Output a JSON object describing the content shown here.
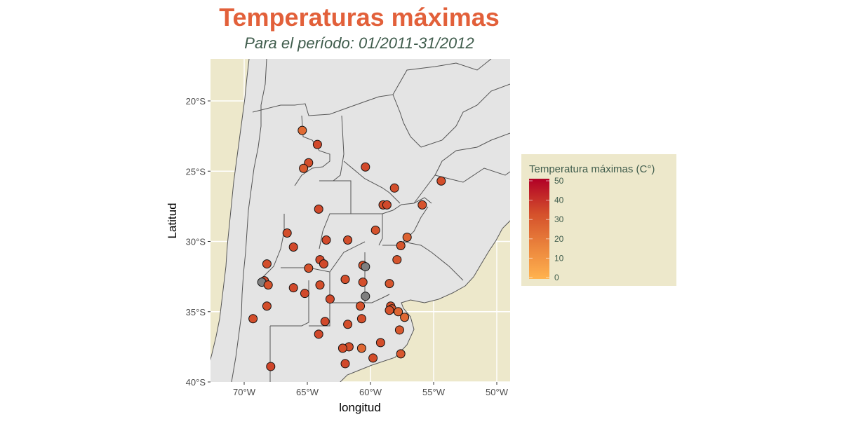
{
  "title": "Temperaturas máximas",
  "subtitle": "Para el período: 01/2011-31/2012",
  "colors": {
    "title": "#e2603a",
    "subtitle": "#3f5c4c",
    "ocean": "#ede8cb",
    "land": "#e4e4e4",
    "border": "#555555",
    "na": "#7f7f7f",
    "scale_low": "#ffb34f",
    "scale_mid": "#d4502b",
    "scale_high": "#b10026"
  },
  "chart_data": {
    "type": "scatter-map",
    "xlabel": "longitud",
    "ylabel": "Latitud",
    "xlim": [
      -72.7,
      -48.9
    ],
    "ylim": [
      -40,
      -17
    ],
    "x_ticks": [
      {
        "value": -70,
        "label": "70°W"
      },
      {
        "value": -65,
        "label": "65°W"
      },
      {
        "value": -60,
        "label": "60°W"
      },
      {
        "value": -55,
        "label": "55°W"
      },
      {
        "value": -50,
        "label": "50°W"
      }
    ],
    "y_ticks": [
      {
        "value": -20,
        "label": "20°S"
      },
      {
        "value": -25,
        "label": "25°S"
      },
      {
        "value": -30,
        "label": "30°S"
      },
      {
        "value": -35,
        "label": "35°S"
      },
      {
        "value": -40,
        "label": "40°S"
      }
    ],
    "grid": true,
    "legend": {
      "title": "Temperatura máximas (C°)",
      "placement": "right",
      "range": [
        0,
        50
      ],
      "ticks": [
        "0",
        "10",
        "20",
        "30",
        "40",
        "50"
      ]
    },
    "points": [
      {
        "lon": -65.4,
        "lat": -22.1,
        "tmax": 24
      },
      {
        "lon": -64.2,
        "lat": -23.1,
        "tmax": 34
      },
      {
        "lon": -64.9,
        "lat": -24.4,
        "tmax": 33
      },
      {
        "lon": -65.3,
        "lat": -24.8,
        "tmax": 29
      },
      {
        "lon": -60.4,
        "lat": -24.7,
        "tmax": 34
      },
      {
        "lon": -54.4,
        "lat": -25.7,
        "tmax": 33
      },
      {
        "lon": -58.1,
        "lat": -26.2,
        "tmax": 33
      },
      {
        "lon": -59.0,
        "lat": -27.4,
        "tmax": 33
      },
      {
        "lon": -58.7,
        "lat": -27.4,
        "tmax": 34
      },
      {
        "lon": -55.9,
        "lat": -27.4,
        "tmax": 32
      },
      {
        "lon": -64.1,
        "lat": -27.7,
        "tmax": 34
      },
      {
        "lon": -59.6,
        "lat": -29.2,
        "tmax": 32
      },
      {
        "lon": -57.1,
        "lat": -29.7,
        "tmax": 27
      },
      {
        "lon": -66.6,
        "lat": -29.4,
        "tmax": 33
      },
      {
        "lon": -66.1,
        "lat": -30.4,
        "tmax": 34
      },
      {
        "lon": -63.5,
        "lat": -29.9,
        "tmax": 34
      },
      {
        "lon": -61.8,
        "lat": -29.9,
        "tmax": 33
      },
      {
        "lon": -57.6,
        "lat": -30.3,
        "tmax": 31
      },
      {
        "lon": -68.2,
        "lat": -31.6,
        "tmax": 33
      },
      {
        "lon": -64.0,
        "lat": -31.3,
        "tmax": 34
      },
      {
        "lon": -63.7,
        "lat": -31.6,
        "tmax": 34
      },
      {
        "lon": -64.9,
        "lat": -31.9,
        "tmax": 32
      },
      {
        "lon": -60.6,
        "lat": -31.7,
        "tmax": 32
      },
      {
        "lon": -60.4,
        "lat": -31.8,
        "tmax": null
      },
      {
        "lon": -57.9,
        "lat": -31.3,
        "tmax": 31
      },
      {
        "lon": -68.4,
        "lat": -32.8,
        "tmax": 34
      },
      {
        "lon": -68.6,
        "lat": -32.9,
        "tmax": null
      },
      {
        "lon": -68.1,
        "lat": -33.1,
        "tmax": 32
      },
      {
        "lon": -66.1,
        "lat": -33.3,
        "tmax": 34
      },
      {
        "lon": -65.2,
        "lat": -33.7,
        "tmax": 34
      },
      {
        "lon": -64.0,
        "lat": -33.1,
        "tmax": 33
      },
      {
        "lon": -62.0,
        "lat": -32.7,
        "tmax": 33
      },
      {
        "lon": -60.6,
        "lat": -32.9,
        "tmax": 33
      },
      {
        "lon": -58.5,
        "lat": -33.0,
        "tmax": 31
      },
      {
        "lon": -63.2,
        "lat": -34.1,
        "tmax": 34
      },
      {
        "lon": -60.4,
        "lat": -33.9,
        "tmax": null
      },
      {
        "lon": -68.2,
        "lat": -34.6,
        "tmax": 33
      },
      {
        "lon": -60.8,
        "lat": -34.6,
        "tmax": 32
      },
      {
        "lon": -58.4,
        "lat": -34.6,
        "tmax": 32
      },
      {
        "lon": -58.3,
        "lat": -34.8,
        "tmax": 31
      },
      {
        "lon": -58.5,
        "lat": -34.9,
        "tmax": 32
      },
      {
        "lon": -57.8,
        "lat": -35.0,
        "tmax": 26
      },
      {
        "lon": -57.3,
        "lat": -35.4,
        "tmax": 25
      },
      {
        "lon": -69.3,
        "lat": -35.5,
        "tmax": 33
      },
      {
        "lon": -63.6,
        "lat": -35.7,
        "tmax": 34
      },
      {
        "lon": -60.7,
        "lat": -35.5,
        "tmax": 33
      },
      {
        "lon": -61.8,
        "lat": -35.9,
        "tmax": 33
      },
      {
        "lon": -57.7,
        "lat": -36.3,
        "tmax": 30
      },
      {
        "lon": -64.1,
        "lat": -36.6,
        "tmax": 34
      },
      {
        "lon": -61.7,
        "lat": -37.5,
        "tmax": 33
      },
      {
        "lon": -62.2,
        "lat": -37.6,
        "tmax": 33
      },
      {
        "lon": -60.7,
        "lat": -37.6,
        "tmax": 25
      },
      {
        "lon": -59.2,
        "lat": -37.2,
        "tmax": 33
      },
      {
        "lon": -57.6,
        "lat": -38.0,
        "tmax": 30
      },
      {
        "lon": -59.8,
        "lat": -38.3,
        "tmax": 33
      },
      {
        "lon": -62.0,
        "lat": -38.7,
        "tmax": 34
      },
      {
        "lon": -67.9,
        "lat": -38.9,
        "tmax": 35
      }
    ]
  }
}
